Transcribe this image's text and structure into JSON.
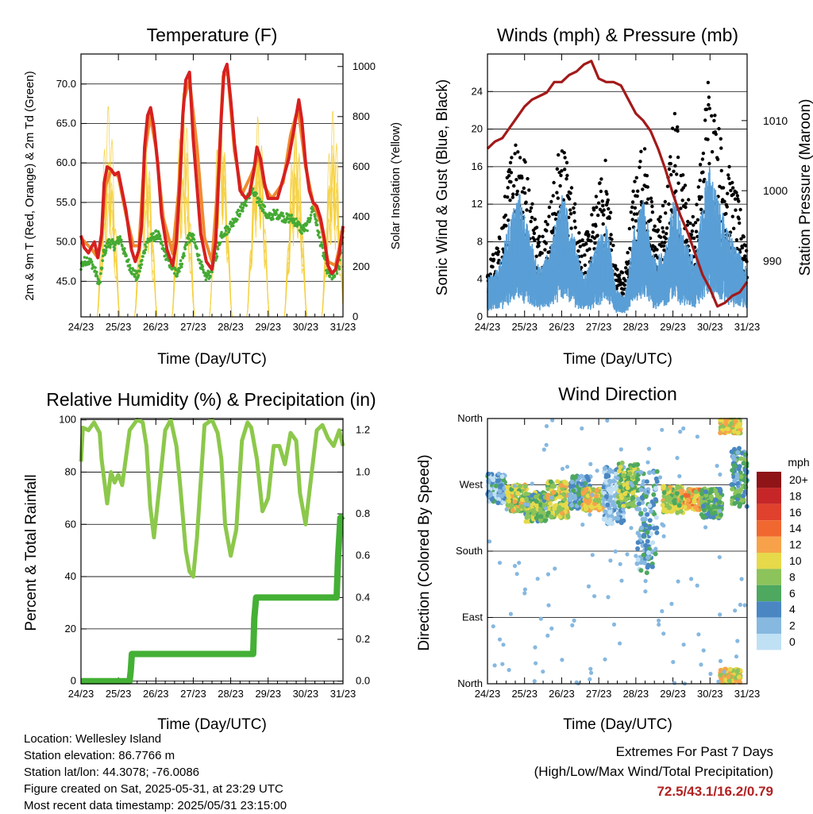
{
  "chart_data": [
    {
      "type": "line",
      "title": "Temperature (F)",
      "xlabel": "Time (Day/UTC)",
      "ylabel": "2m & 9m T (Red, Orange) & 2m Td (Green)",
      "y2label": "Solar Insolation (Yellow)",
      "xticks": [
        "24/23",
        "25/23",
        "26/23",
        "27/23",
        "28/23",
        "29/23",
        "30/23",
        "31/23"
      ],
      "xlim": [
        0,
        7
      ],
      "ylim": [
        40.5,
        73.8
      ],
      "yticks": [
        "45.0",
        "50.0",
        "55.0",
        "60.0",
        "65.0",
        "70.0"
      ],
      "y2lim": [
        0,
        1050
      ],
      "y2ticks": [
        "0",
        "200",
        "400",
        "600",
        "800",
        "1000"
      ],
      "grid": true,
      "colors": {
        "t2m": "#d62020",
        "t9m": "#f08a30",
        "td": "#44aa33",
        "solar": "#f5d040"
      },
      "series": [
        {
          "key": "t2m",
          "x": [
            0,
            0.08,
            0.2,
            0.3,
            0.36,
            0.45,
            0.55,
            0.62,
            0.7,
            0.8,
            0.9,
            1.0,
            1.2,
            1.35,
            1.45,
            1.55,
            1.62,
            1.7,
            1.78,
            1.86,
            1.95,
            2.05,
            2.15,
            2.3,
            2.45,
            2.55,
            2.65,
            2.72,
            2.8,
            2.9,
            3.0,
            3.1,
            3.2,
            3.35,
            3.5,
            3.6,
            3.68,
            3.75,
            3.82,
            3.9,
            4.0,
            4.1,
            4.25,
            4.4,
            4.5,
            4.62,
            4.7,
            4.8,
            4.9,
            5.0,
            5.1,
            5.25,
            5.4,
            5.55,
            5.68,
            5.75,
            5.82,
            5.9,
            6.0,
            6.1,
            6.2,
            6.3,
            6.4,
            6.5,
            6.6,
            6.7,
            6.8,
            6.9,
            7.0
          ],
          "y": [
            50.8,
            49.3,
            48.6,
            49.5,
            50.0,
            48.0,
            51.0,
            57.5,
            59.5,
            59.2,
            58.5,
            58.8,
            54.0,
            49.0,
            47.5,
            49.0,
            52.0,
            62.0,
            66.0,
            67.0,
            64.5,
            60.0,
            53.5,
            49.0,
            47.0,
            50.0,
            58.0,
            66.0,
            70.5,
            71.5,
            63.0,
            57.0,
            51.0,
            47.5,
            46.5,
            50.0,
            58.5,
            66.0,
            71.5,
            72.5,
            68.0,
            62.5,
            56.5,
            55.5,
            56.0,
            59.0,
            62.0,
            60.5,
            57.5,
            55.5,
            55.5,
            55.5,
            58.0,
            60.5,
            64.0,
            66.0,
            68.0,
            65.5,
            60.0,
            56.5,
            55.0,
            54.5,
            53.0,
            50.5,
            47.0,
            46.0,
            46.5,
            48.5,
            52.0
          ]
        },
        {
          "key": "t9m",
          "x": [
            0,
            0.3,
            0.45,
            0.55,
            0.65,
            0.8,
            1.0,
            1.2,
            1.4,
            1.55,
            1.7,
            1.85,
            2.0,
            2.2,
            2.45,
            2.6,
            2.75,
            2.9,
            3.1,
            3.3,
            3.5,
            3.65,
            3.8,
            3.92,
            4.1,
            4.3,
            4.55,
            4.75,
            4.9,
            5.1,
            5.4,
            5.6,
            5.8,
            6.0,
            6.2,
            6.4,
            6.6,
            6.8,
            7.0
          ],
          "y": [
            50.5,
            49.0,
            48.0,
            50.5,
            57.0,
            59.0,
            58.3,
            53.5,
            49.5,
            49.5,
            61.0,
            66.0,
            62.0,
            53.0,
            48.5,
            56.0,
            68.0,
            70.5,
            62.0,
            50.5,
            47.5,
            57.0,
            71.0,
            71.5,
            61.5,
            56.0,
            58.5,
            61.0,
            57.0,
            55.5,
            57.5,
            63.5,
            67.0,
            59.5,
            55.0,
            52.5,
            47.5,
            47.0,
            51.5
          ]
        },
        {
          "key": "td",
          "x": [
            0,
            0.15,
            0.3,
            0.4,
            0.5,
            0.6,
            0.75,
            0.9,
            1.05,
            1.2,
            1.35,
            1.5,
            1.6,
            1.75,
            1.9,
            2.05,
            2.2,
            2.4,
            2.55,
            2.7,
            2.85,
            3.0,
            3.15,
            3.3,
            3.45,
            3.6,
            3.75,
            3.9,
            4.05,
            4.2,
            4.4,
            4.55,
            4.7,
            4.85,
            5.0,
            5.15,
            5.3,
            5.45,
            5.6,
            5.75,
            5.9,
            6.05,
            6.2,
            6.35,
            6.5,
            6.6,
            6.75,
            6.9,
            7.0
          ],
          "y": [
            47.0,
            47.8,
            47.2,
            46.0,
            44.5,
            48.5,
            50.0,
            49.5,
            50.5,
            48.0,
            46.5,
            45.5,
            47.0,
            50.0,
            50.5,
            51.0,
            49.0,
            47.0,
            46.0,
            47.5,
            50.5,
            50.5,
            48.0,
            45.5,
            46.0,
            48.0,
            51.0,
            51.5,
            52.5,
            53.5,
            55.0,
            56.5,
            55.5,
            54.5,
            53.0,
            53.5,
            53.5,
            53.0,
            53.0,
            52.5,
            51.5,
            52.0,
            54.5,
            51.0,
            48.0,
            46.0,
            45.5,
            47.0,
            51.0
          ]
        },
        {
          "key": "solar",
          "daylight_start": 0.43,
          "daylight_end": 1.04,
          "peaks": [
            850,
            790,
            1000,
            1000,
            1030,
            880,
            890
          ]
        }
      ]
    },
    {
      "type": "line",
      "title": "Winds (mph) & Pressure (mb)",
      "xlabel": "Time (Day/UTC)",
      "ylabel": "Sonic Wind & Gust (Blue, Black)",
      "y2label": "Station Pressure (Maroon)",
      "xticks": [
        "24/23",
        "25/23",
        "26/23",
        "27/23",
        "28/23",
        "29/23",
        "30/23",
        "31/23"
      ],
      "xlim": [
        0,
        7
      ],
      "ylim": [
        0,
        28
      ],
      "yticks": [
        "0",
        "4",
        "8",
        "12",
        "16",
        "20",
        "24"
      ],
      "y2lim": [
        982,
        1019.5
      ],
      "y2ticks": [
        "990",
        "1000",
        "1010"
      ],
      "grid": true,
      "colors": {
        "wind": "#5a9fd6",
        "gust": "#000000",
        "pressure": "#a31a1a"
      },
      "wind_envelope": {
        "x": [
          0,
          0.3,
          0.6,
          0.85,
          1.1,
          1.4,
          1.7,
          2.0,
          2.3,
          2.6,
          2.9,
          3.2,
          3.45,
          3.7,
          3.95,
          4.2,
          4.5,
          4.8,
          5.05,
          5.3,
          5.6,
          5.95,
          6.3,
          6.6,
          7.0
        ],
        "max": [
          4,
          5,
          10,
          13,
          9,
          5,
          7,
          13,
          9,
          4,
          7,
          10,
          3,
          2,
          9,
          12,
          6,
          7,
          13,
          8,
          6,
          16,
          11,
          8,
          5
        ]
      },
      "gust_envelope": {
        "x": [
          0,
          0.3,
          0.6,
          0.85,
          1.1,
          1.4,
          1.7,
          2.0,
          2.3,
          2.6,
          2.9,
          3.2,
          3.45,
          3.7,
          3.95,
          4.2,
          4.5,
          4.8,
          5.05,
          5.3,
          5.6,
          5.95,
          6.3,
          6.6,
          7.0
        ],
        "max": [
          5,
          7,
          15,
          19,
          13,
          8,
          11,
          17,
          12,
          7,
          11,
          15,
          5,
          4,
          13,
          17,
          9,
          11,
          20,
          13,
          9,
          23,
          17,
          13,
          8
        ]
      },
      "pressure": {
        "x": [
          0,
          0.2,
          0.4,
          0.6,
          0.8,
          1.0,
          1.2,
          1.4,
          1.6,
          1.8,
          2.0,
          2.2,
          2.4,
          2.6,
          2.8,
          3.0,
          3.2,
          3.4,
          3.6,
          3.8,
          4.0,
          4.2,
          4.4,
          4.6,
          4.8,
          5.0,
          5.2,
          5.4,
          5.6,
          5.8,
          6.0,
          6.2,
          6.4,
          6.6,
          6.8,
          7.0
        ],
        "y": [
          1006,
          1007,
          1007.5,
          1009,
          1010.5,
          1012,
          1013,
          1013.5,
          1014,
          1015.5,
          1015.5,
          1016.5,
          1017,
          1018,
          1018.5,
          1016,
          1015.5,
          1015.5,
          1015,
          1013,
          1011,
          1010,
          1008.5,
          1006,
          1003,
          999.5,
          996.5,
          994,
          991,
          988,
          986,
          983.5,
          984,
          985,
          985.5,
          987
        ]
      }
    },
    {
      "type": "line",
      "title": "Relative Humidity (%) & Precipitation (in)",
      "xlabel": "Time (Day/UTC)",
      "ylabel": "Percent & Total Rainfall",
      "xticks": [
        "24/23",
        "25/23",
        "26/23",
        "27/23",
        "28/23",
        "29/23",
        "30/23",
        "31/23"
      ],
      "xlim": [
        0,
        7
      ],
      "ylim": [
        -1,
        100.5
      ],
      "yticks": [
        "0",
        "20",
        "40",
        "60",
        "80",
        "100"
      ],
      "y2lim": [
        -0.0125,
        1.256
      ],
      "y2ticks": [
        "0.0",
        "0.2",
        "0.4",
        "0.6",
        "0.8",
        "1.0",
        "1.2"
      ],
      "grid": true,
      "colors": {
        "rh": "#8cc84b",
        "precip": "#44b035"
      },
      "series": [
        {
          "key": "rh",
          "x": [
            0,
            0.05,
            0.2,
            0.35,
            0.5,
            0.55,
            0.7,
            0.8,
            0.9,
            1.0,
            1.1,
            1.3,
            1.5,
            1.65,
            1.75,
            1.85,
            1.95,
            2.1,
            2.25,
            2.4,
            2.55,
            2.65,
            2.8,
            2.9,
            3.0,
            3.1,
            3.3,
            3.5,
            3.65,
            3.75,
            3.85,
            4.0,
            4.15,
            4.3,
            4.45,
            4.55,
            4.7,
            4.85,
            5.0,
            5.15,
            5.3,
            5.45,
            5.6,
            5.75,
            5.85,
            6.0,
            6.15,
            6.3,
            6.45,
            6.6,
            6.75,
            6.9,
            7.0
          ],
          "y": [
            84,
            97,
            96,
            99,
            95,
            85,
            68,
            80,
            76,
            79,
            75,
            96,
            100,
            99,
            90,
            67,
            55,
            75,
            96,
            100,
            90,
            75,
            50,
            42,
            40,
            55,
            98,
            100,
            95,
            85,
            60,
            48,
            58,
            92,
            99,
            97,
            85,
            65,
            70,
            90,
            90,
            83,
            95,
            92,
            72,
            60,
            78,
            96,
            98,
            93,
            90,
            96,
            90
          ]
        },
        {
          "key": "precip",
          "x": [
            0,
            1.3,
            1.33,
            1.36,
            4.6,
            4.63,
            4.68,
            6.83,
            6.87,
            6.93,
            7.0
          ],
          "y": [
            0,
            0,
            0.05,
            0.13,
            0.13,
            0.3,
            0.4,
            0.4,
            0.6,
            0.78,
            0.79
          ]
        }
      ]
    },
    {
      "type": "scatter",
      "title": "Wind Direction",
      "xlabel": "Time (Day/UTC)",
      "ylabel": "Direction (Colored By Speed)",
      "xticks": [
        "24/23",
        "25/23",
        "26/23",
        "27/23",
        "28/23",
        "29/23",
        "30/23",
        "31/23"
      ],
      "xlim": [
        0,
        7
      ],
      "yticks": [
        "North",
        "East",
        "South",
        "West",
        "North"
      ],
      "ylim": [
        0,
        360
      ],
      "grid": true,
      "legend_title": "mph",
      "legend_labels": [
        "20+",
        "18",
        "16",
        "14",
        "12",
        "10",
        "8",
        "6",
        "4",
        "2",
        "0"
      ],
      "legend_colors": [
        "#8e1418",
        "#c62628",
        "#e0412d",
        "#f0672f",
        "#f7a24a",
        "#e6d94a",
        "#8cc35b",
        "#4ea85f",
        "#4a87c2",
        "#86b8e0",
        "#c0e0f4"
      ],
      "clusters": [
        {
          "center_x": 0.2,
          "center_dir": 265,
          "spread_dir": 20,
          "speed": 3
        },
        {
          "center_x": 0.8,
          "center_dir": 252,
          "spread_dir": 18,
          "speed": 9
        },
        {
          "center_x": 1.3,
          "center_dir": 240,
          "spread_dir": 20,
          "speed": 7
        },
        {
          "center_x": 1.9,
          "center_dir": 250,
          "spread_dir": 25,
          "speed": 9
        },
        {
          "center_x": 2.5,
          "center_dir": 260,
          "spread_dir": 22,
          "speed": 4
        },
        {
          "center_x": 2.85,
          "center_dir": 250,
          "spread_dir": 15,
          "speed": 10
        },
        {
          "center_x": 3.4,
          "center_dir": 255,
          "spread_dir": 40,
          "speed": 2
        },
        {
          "center_x": 3.8,
          "center_dir": 270,
          "spread_dir": 30,
          "speed": 8
        },
        {
          "center_x": 4.3,
          "center_dir": 220,
          "spread_dir": 70,
          "speed": 3
        },
        {
          "center_x": 5.0,
          "center_dir": 250,
          "spread_dir": 18,
          "speed": 9
        },
        {
          "center_x": 5.6,
          "center_dir": 250,
          "spread_dir": 14,
          "speed": 11
        },
        {
          "center_x": 6.05,
          "center_dir": 245,
          "spread_dir": 20,
          "speed": 6
        },
        {
          "center_x": 6.55,
          "center_dir": 350,
          "spread_dir": 10,
          "speed": 10
        },
        {
          "center_x": 6.55,
          "center_dir": 10,
          "spread_dir": 10,
          "speed": 10
        },
        {
          "center_x": 6.85,
          "center_dir": 280,
          "spread_dir": 40,
          "speed": 5
        }
      ]
    }
  ],
  "info": {
    "location": "Location: Wellesley Island",
    "elevation": "Station elevation: 86.7766 m",
    "latlon": "Station lat/lon: 44.3078; -76.0086",
    "created": "Figure created on Sat, 2025-05-31, at 23:29 UTC",
    "recent": "Most recent data timestamp: 2025/05/31 23:15:00"
  },
  "extremes": {
    "title": "Extremes For Past 7 Days",
    "subtitle": "(High/Low/Max Wind/Total Precipitation)",
    "values": "72.5/43.1/16.2/0.79"
  }
}
